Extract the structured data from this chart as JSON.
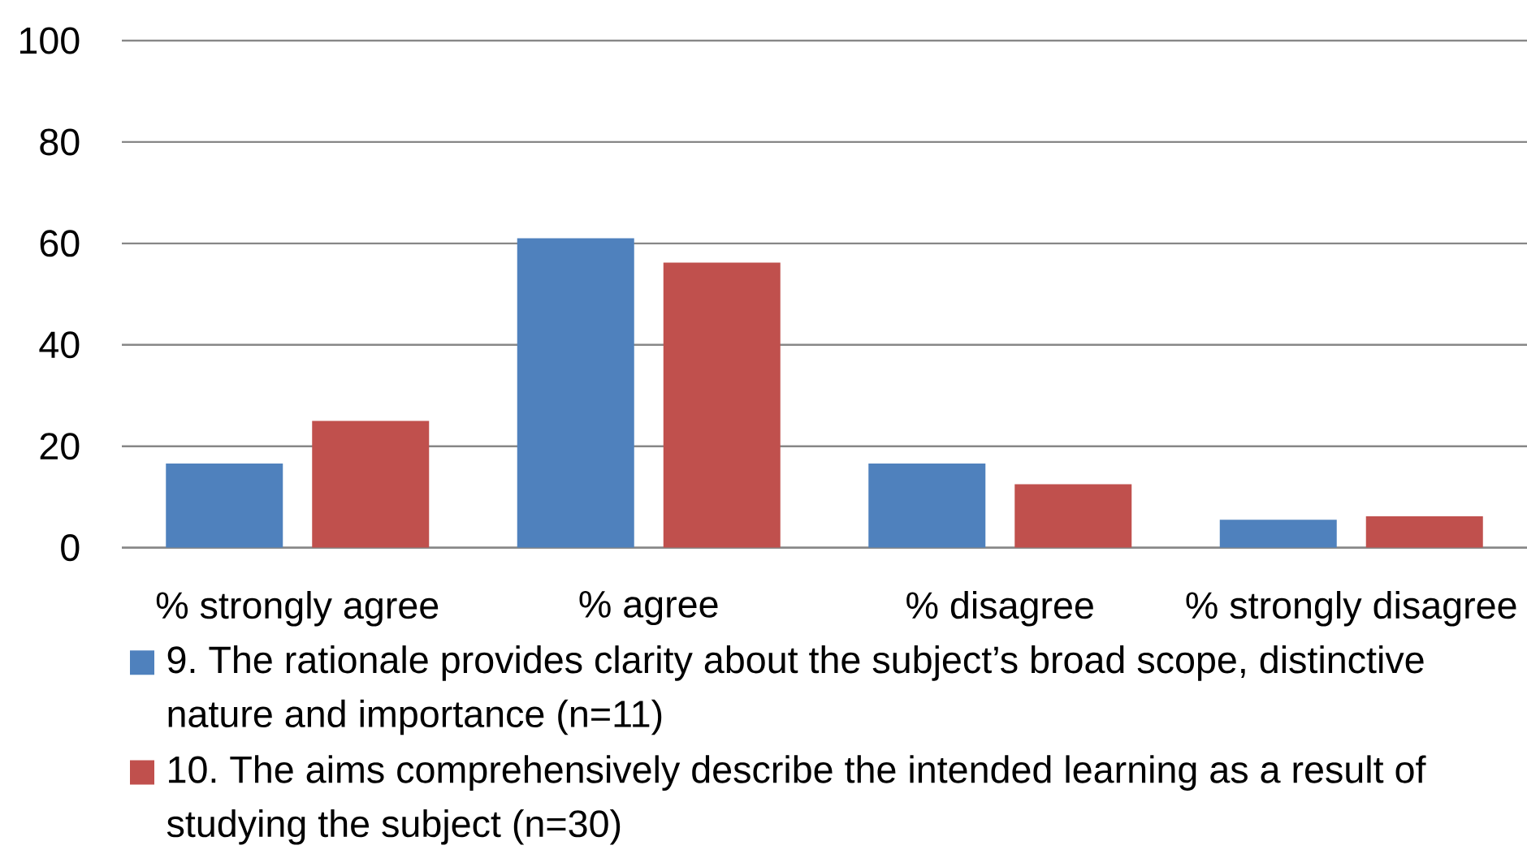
{
  "chart_data": {
    "type": "bar",
    "categories": [
      "% strongly agree",
      "% agree",
      "% disagree",
      "% strongly disagree"
    ],
    "series": [
      {
        "name": "9. The rationale provides clarity about the subject’s broad scope, distinctive nature and importance (n=11)",
        "color": "#4f81bd",
        "values": [
          16.6,
          61,
          16.6,
          5.5
        ]
      },
      {
        "name": "10. The aims comprehensively describe the intended learning as a result of studying the subject (n=30)",
        "color": "#c0504d",
        "values": [
          25,
          56.2,
          12.5,
          6.2
        ]
      }
    ],
    "ylim": [
      0,
      100
    ],
    "yticks": [
      0,
      20,
      40,
      60,
      80,
      100
    ],
    "grid": "y",
    "legend": "bottom"
  }
}
